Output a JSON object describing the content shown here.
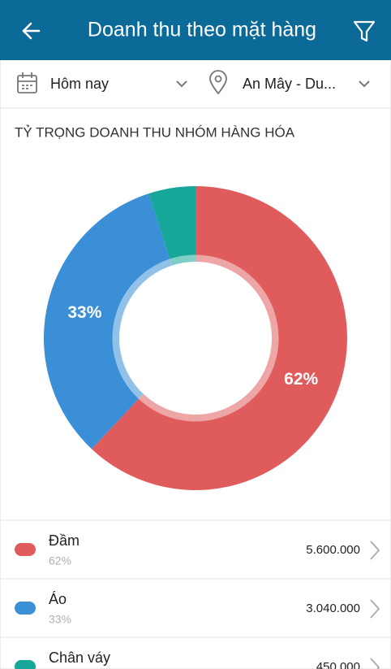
{
  "header": {
    "title": "Doanh thu theo mặt hàng"
  },
  "filters": {
    "date": "Hôm nay",
    "location": "An Mây - Du..."
  },
  "chart_data": {
    "type": "donut",
    "title": "TỶ TRỌNG DOANH THU NHÓM HÀNG HÓA",
    "categories": [
      "Đầm",
      "Áo",
      "Chân váy"
    ],
    "values": [
      62,
      33,
      5
    ],
    "value_labels": [
      "62%",
      "33%",
      null
    ],
    "colors": [
      "#e05c5c",
      "#3a8fd6",
      "#17a79a"
    ]
  },
  "items": [
    {
      "percent": "62%",
      "amount": "5.600.000"
    },
    {
      "percent": "33%",
      "amount": "3.040.000"
    },
    {
      "amount": "450.000"
    }
  ]
}
